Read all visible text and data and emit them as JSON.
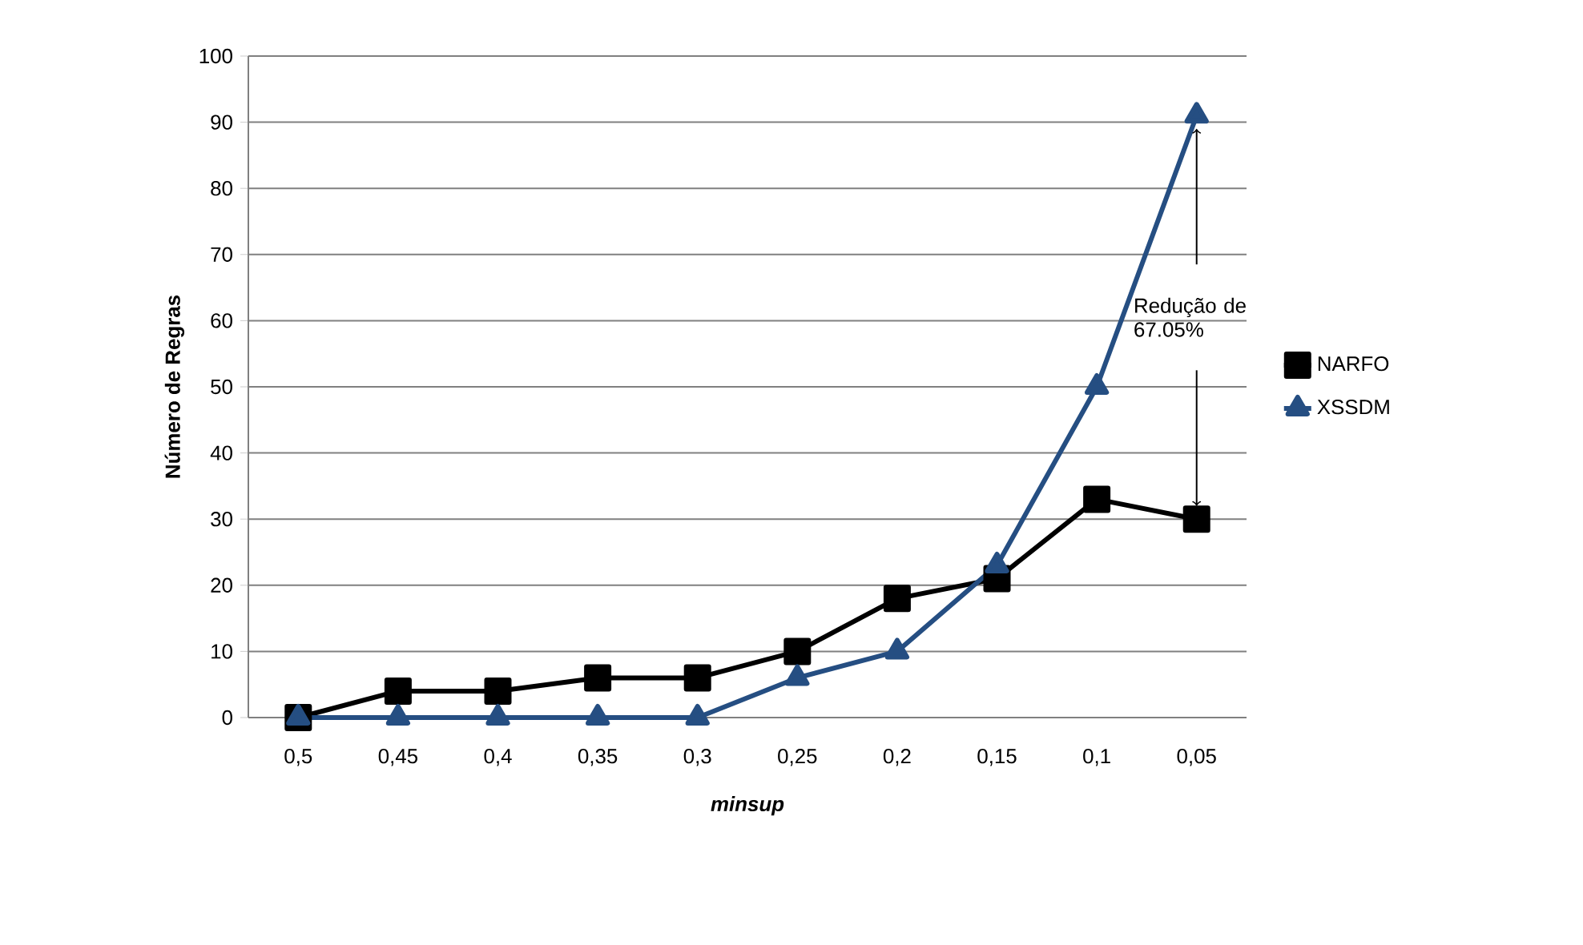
{
  "chart_data": {
    "type": "line",
    "xlabel": "minsup",
    "ylabel": "Número de Regras",
    "categories": [
      "0,5",
      "0,45",
      "0,4",
      "0,35",
      "0,3",
      "0,25",
      "0,2",
      "0,15",
      "0,1",
      "0,05"
    ],
    "series": [
      {
        "name": "NARFO",
        "color": "#000000",
        "marker": "square",
        "values": [
          0,
          4,
          4,
          6,
          6,
          10,
          18,
          21,
          33,
          30
        ]
      },
      {
        "name": "XSSDM",
        "color": "#254e82",
        "marker": "triangle",
        "values": [
          0,
          0,
          0,
          0,
          0,
          6,
          10,
          23,
          50,
          91
        ]
      }
    ],
    "ylim": [
      0,
      100
    ],
    "yticks": [
      0,
      10,
      20,
      30,
      40,
      50,
      60,
      70,
      80,
      90,
      100
    ],
    "grid": "y",
    "legend": "right",
    "line_style": "solid",
    "annotations": [
      "Redução de 67.05%"
    ]
  }
}
